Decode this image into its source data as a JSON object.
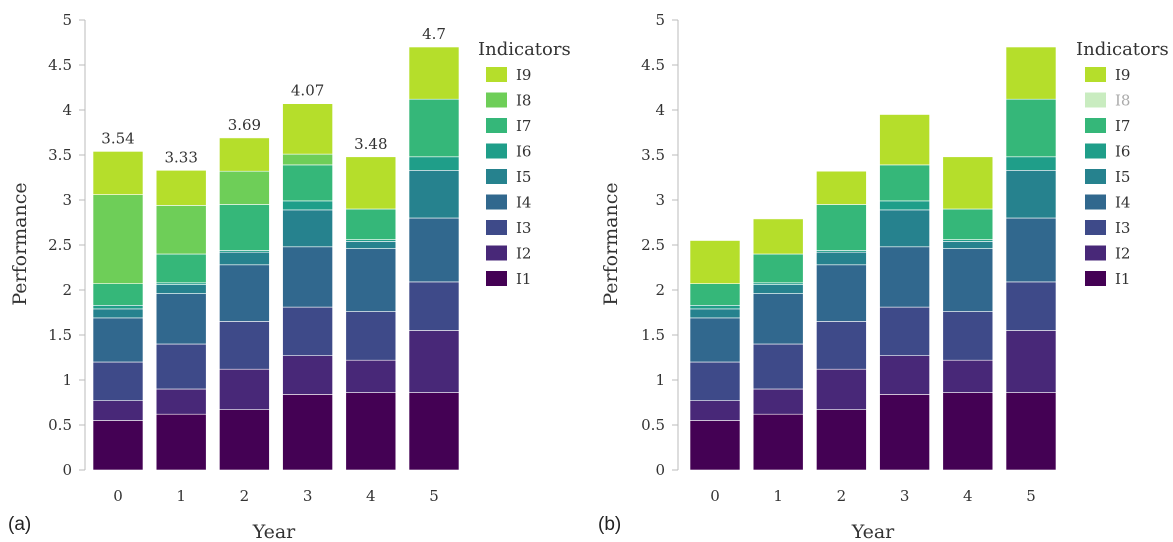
{
  "palette": {
    "I1": "#440154",
    "I2": "#482878",
    "I3": "#3e4a89",
    "I4": "#31688e",
    "I5": "#26828e",
    "I6": "#1f9e89",
    "I7": "#35b779",
    "I8": "#6ece58",
    "I9": "#b5de2b",
    "I8_faded": "#c9ecc0"
  },
  "chart_data": [
    {
      "type": "bar",
      "stacked": true,
      "panel_label": "(a)",
      "xlabel": "Year",
      "ylabel": "Performance",
      "ylim": [
        0,
        5
      ],
      "yticks": [
        "0",
        "0.5",
        "1",
        "1.5",
        "2",
        "2.5",
        "3",
        "3.5",
        "4",
        "4.5",
        "5"
      ],
      "categories": [
        "0",
        "1",
        "2",
        "3",
        "4",
        "5"
      ],
      "legend": {
        "title": "Indicators",
        "position": "right",
        "items": [
          "I9",
          "I8",
          "I7",
          "I6",
          "I5",
          "I4",
          "I3",
          "I2",
          "I1"
        ]
      },
      "totals": [
        "3.54",
        "3.33",
        "3.69",
        "4.07",
        "3.48",
        "4.7"
      ],
      "series": [
        {
          "name": "I1",
          "values": [
            0.55,
            0.62,
            0.67,
            0.84,
            0.86,
            0.86
          ]
        },
        {
          "name": "I2",
          "values": [
            0.22,
            0.28,
            0.45,
            0.43,
            0.36,
            0.69
          ]
        },
        {
          "name": "I3",
          "values": [
            0.43,
            0.5,
            0.53,
            0.54,
            0.54,
            0.54
          ]
        },
        {
          "name": "I4",
          "values": [
            0.49,
            0.56,
            0.63,
            0.67,
            0.7,
            0.71
          ]
        },
        {
          "name": "I5",
          "values": [
            0.1,
            0.1,
            0.14,
            0.41,
            0.08,
            0.53
          ]
        },
        {
          "name": "I6",
          "values": [
            0.04,
            0.02,
            0.02,
            0.1,
            0.02,
            0.15
          ]
        },
        {
          "name": "I7",
          "values": [
            0.24,
            0.32,
            0.51,
            0.4,
            0.34,
            0.64
          ]
        },
        {
          "name": "I8",
          "values": [
            0.99,
            0.54,
            0.37,
            0.12,
            0.0,
            0.0
          ]
        },
        {
          "name": "I9",
          "values": [
            0.48,
            0.39,
            0.37,
            0.56,
            0.58,
            0.58
          ]
        }
      ]
    },
    {
      "type": "bar",
      "stacked": true,
      "panel_label": "(b)",
      "xlabel": "Year",
      "ylabel": "Performance",
      "ylim": [
        0,
        5
      ],
      "yticks": [
        "0",
        "0.5",
        "1",
        "1.5",
        "2",
        "2.5",
        "3",
        "3.5",
        "4",
        "4.5",
        "5"
      ],
      "categories": [
        "0",
        "1",
        "2",
        "3",
        "4",
        "5"
      ],
      "legend": {
        "title": "Indicators",
        "position": "right",
        "items": [
          "I9",
          "I8",
          "I7",
          "I6",
          "I5",
          "I4",
          "I3",
          "I2",
          "I1"
        ],
        "faded": [
          "I8"
        ]
      },
      "totals": [],
      "series": [
        {
          "name": "I1",
          "values": [
            0.55,
            0.62,
            0.67,
            0.84,
            0.86,
            0.86
          ]
        },
        {
          "name": "I2",
          "values": [
            0.22,
            0.28,
            0.45,
            0.43,
            0.36,
            0.69
          ]
        },
        {
          "name": "I3",
          "values": [
            0.43,
            0.5,
            0.53,
            0.54,
            0.54,
            0.54
          ]
        },
        {
          "name": "I4",
          "values": [
            0.49,
            0.56,
            0.63,
            0.67,
            0.7,
            0.71
          ]
        },
        {
          "name": "I5",
          "values": [
            0.1,
            0.1,
            0.14,
            0.41,
            0.08,
            0.53
          ]
        },
        {
          "name": "I6",
          "values": [
            0.04,
            0.02,
            0.02,
            0.1,
            0.02,
            0.15
          ]
        },
        {
          "name": "I7",
          "values": [
            0.24,
            0.32,
            0.51,
            0.4,
            0.34,
            0.64
          ]
        },
        {
          "name": "I8",
          "values": [
            0,
            0,
            0,
            0,
            0,
            0
          ]
        },
        {
          "name": "I9",
          "values": [
            0.48,
            0.39,
            0.37,
            0.56,
            0.58,
            0.58
          ]
        }
      ]
    }
  ]
}
